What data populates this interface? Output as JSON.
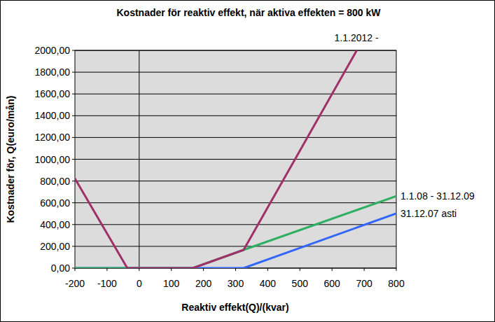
{
  "chart_data": {
    "type": "line",
    "title": "Kostnader för reaktiv effekt, när aktiva effekten = 800 kW",
    "x_label": "Reaktiv effekt(Q)/(kvar)",
    "y_label": "Kostnader för, Q(euro/mån)",
    "xlim": [
      -200,
      800
    ],
    "ylim": [
      0,
      2000
    ],
    "xticks": [
      -200,
      -100,
      0,
      100,
      200,
      300,
      400,
      500,
      600,
      700,
      800
    ],
    "yticks": [
      {
        "value": 0,
        "label": "0,00"
      },
      {
        "value": 200,
        "label": "200,00"
      },
      {
        "value": 400,
        "label": "400,00"
      },
      {
        "value": 600,
        "label": "600,00"
      },
      {
        "value": 800,
        "label": "800,00"
      },
      {
        "value": 1000,
        "label": "1000,00"
      },
      {
        "value": 1200,
        "label": "1200,00"
      },
      {
        "value": 1400,
        "label": "1400,00"
      },
      {
        "value": 1600,
        "label": "1600,00"
      },
      {
        "value": 1800,
        "label": "1800,00"
      },
      {
        "value": 2000,
        "label": "2000,00"
      }
    ],
    "grid": true,
    "series": [
      {
        "name": "31.12.07 asti",
        "color": "#3366ff",
        "x": [
          -200,
          325,
          800
        ],
        "values": [
          0,
          0,
          502
        ]
      },
      {
        "name": "1.1.08 - 31.12.09",
        "color": "#2eaf62",
        "x": [
          -200,
          167,
          325,
          800
        ],
        "values": [
          0,
          0,
          167,
          662
        ]
      },
      {
        "name": "1.1.2012 -",
        "color": "#a0306a",
        "x": [
          -200,
          -37,
          167,
          325,
          677
        ],
        "values": [
          823,
          0,
          0,
          167,
          2000
        ]
      }
    ]
  }
}
